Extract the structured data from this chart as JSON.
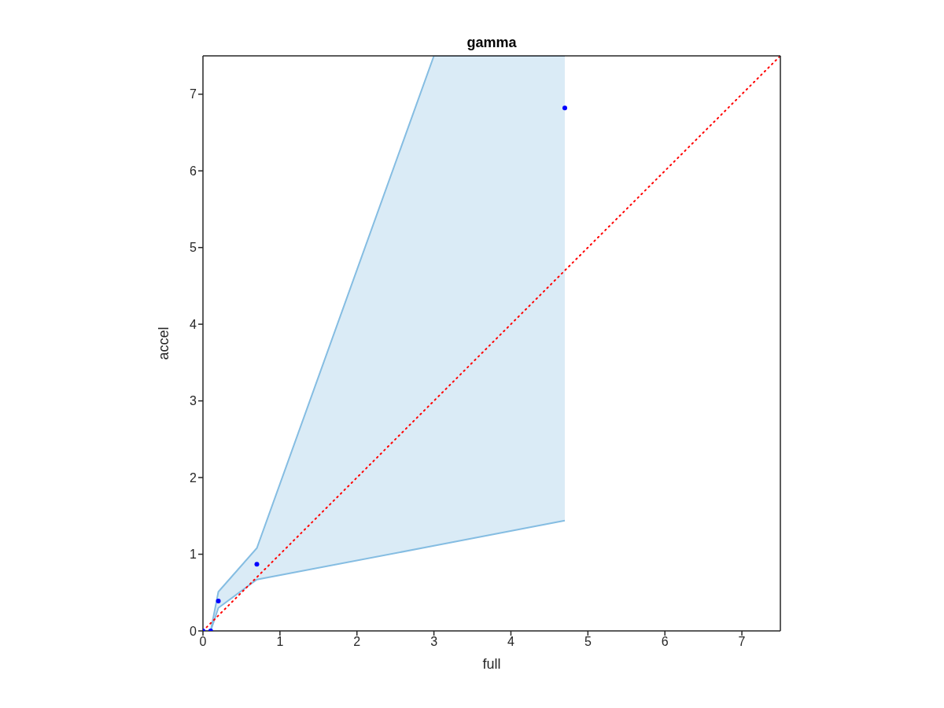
{
  "chart_data": {
    "type": "scatter",
    "title": "gamma",
    "xlabel": "full",
    "ylabel": "accel",
    "xlim": [
      0,
      7.5
    ],
    "ylim": [
      0,
      7.5
    ],
    "xticks": [
      0,
      1,
      2,
      3,
      4,
      5,
      6,
      7
    ],
    "yticks": [
      0,
      1,
      2,
      3,
      4,
      5,
      6,
      7
    ],
    "series": [
      {
        "type": "line",
        "color": "#ff0000",
        "line_style": "dotted",
        "marker": "none",
        "x": [
          0,
          7.5
        ],
        "values": [
          0,
          7.5
        ]
      },
      {
        "color": "#0000ff",
        "marker": "circle",
        "x": [
          0,
          0.1,
          0.2,
          0.7,
          3.0,
          4.7
        ],
        "values": [
          0,
          0,
          0.39,
          0.87,
          null,
          6.82
        ],
        "lower": [
          0,
          0,
          0.3,
          0.67,
          1.11,
          1.44
        ],
        "upper": [
          0,
          0,
          0.51,
          1.08,
          7.5,
          7.5
        ]
      }
    ]
  }
}
